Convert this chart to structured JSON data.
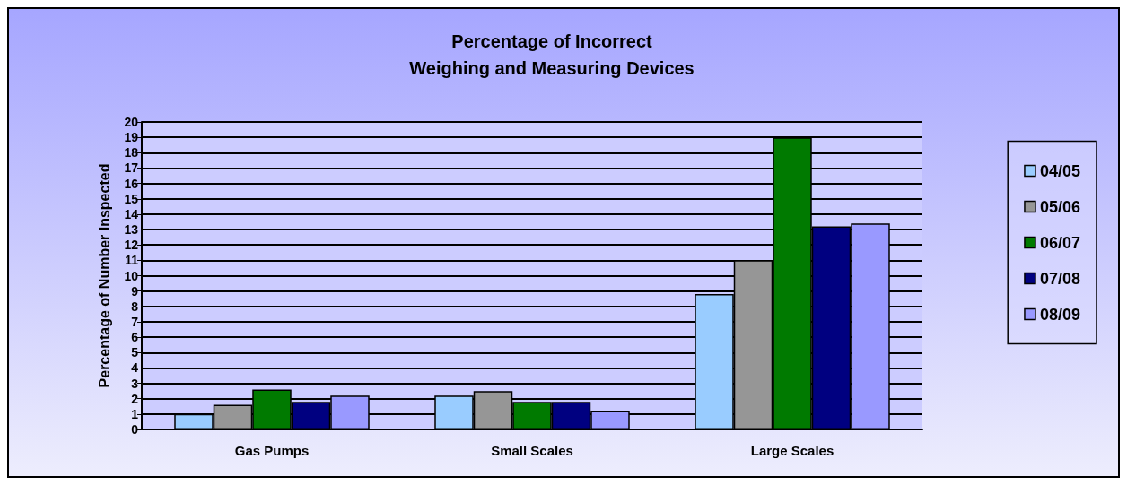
{
  "chart_data": {
    "type": "bar",
    "title": "Percentage of Incorrect\nWeighing and Measuring Devices",
    "ylabel": "Percentage of Number Inspected",
    "categories": [
      "Gas Pumps",
      "Small Scales",
      "Large Scales"
    ],
    "series": [
      {
        "name": "04/05",
        "color": "#99ccff",
        "values": [
          1.0,
          2.2,
          8.8
        ]
      },
      {
        "name": "05/06",
        "color": "#969696",
        "values": [
          1.6,
          2.5,
          11.0
        ]
      },
      {
        "name": "06/07",
        "color": "#007a00",
        "values": [
          2.6,
          1.8,
          19.0
        ]
      },
      {
        "name": "07/08",
        "color": "#000080",
        "values": [
          1.8,
          1.8,
          13.2
        ]
      },
      {
        "name": "08/09",
        "color": "#9999ff",
        "values": [
          2.2,
          1.2,
          13.4
        ]
      }
    ],
    "ylim": [
      0,
      20
    ],
    "yticks": [
      0,
      1,
      2,
      3,
      4,
      5,
      6,
      7,
      8,
      9,
      10,
      11,
      12,
      13,
      14,
      15,
      16,
      17,
      18,
      19,
      20
    ],
    "grid": "y",
    "legend": "right"
  }
}
